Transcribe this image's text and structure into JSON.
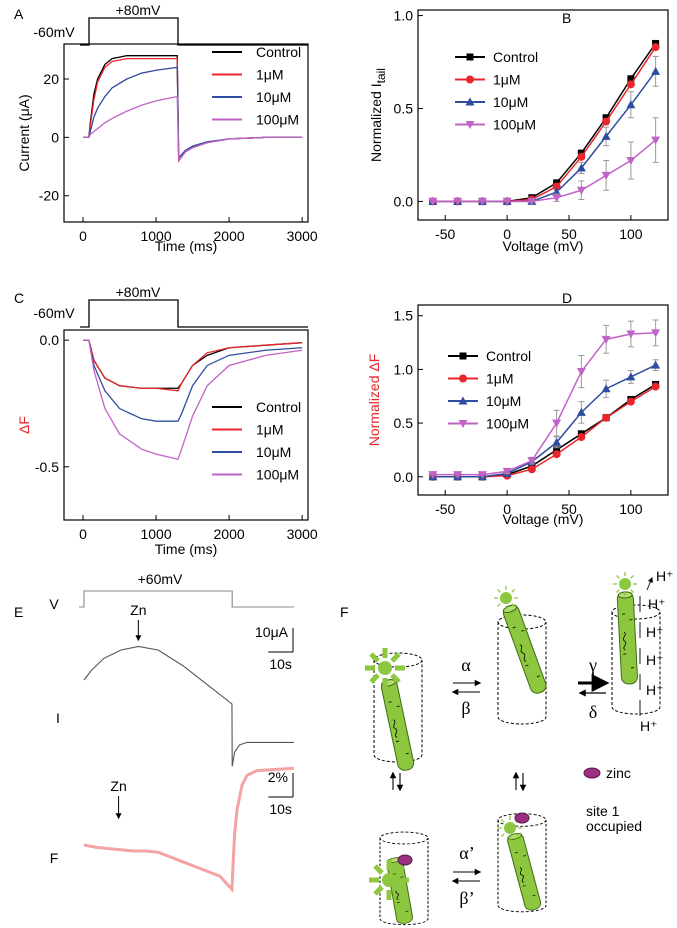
{
  "chart_data": [
    {
      "type": "line",
      "panel": "A",
      "protocol": [
        "-60mV",
        "+80mV"
      ],
      "xlabel": "Time (ms)",
      "ylabel": "Current (μA)",
      "x": [
        0,
        80,
        100,
        150,
        200,
        300,
        400,
        600,
        800,
        1000,
        1290,
        1310,
        1400,
        1500,
        1700,
        2000,
        2500,
        3000
      ],
      "series": [
        {
          "name": "Control",
          "color": "#000000",
          "values": [
            0,
            0,
            5,
            15,
            20,
            25,
            27,
            28,
            28,
            28,
            28,
            -8,
            -5,
            -3.5,
            -1.8,
            -0.5,
            0,
            0
          ]
        },
        {
          "name": "1μM",
          "color": "#e8262b",
          "values": [
            0,
            0,
            4,
            13,
            19,
            24,
            26,
            27,
            27,
            27,
            27,
            -8,
            -5,
            -3.5,
            -1.8,
            -0.5,
            0,
            0
          ]
        },
        {
          "name": "10μM",
          "color": "#2f4da0",
          "values": [
            0,
            0,
            2,
            7,
            10,
            14,
            17,
            20,
            22,
            23,
            24,
            -7,
            -4.5,
            -3,
            -1.5,
            -0.5,
            0,
            0
          ]
        },
        {
          "name": "100μM",
          "color": "#c062c6",
          "values": [
            0,
            0,
            1,
            2,
            3,
            5,
            6.5,
            9,
            11,
            12.5,
            14,
            -8,
            -5,
            -3.5,
            -1.8,
            -0.5,
            0,
            0
          ]
        }
      ],
      "xlim": [
        -260,
        3080
      ],
      "xticks": [
        0,
        1000,
        2000,
        3000
      ],
      "ylim": [
        -29,
        32
      ],
      "yticks": [
        -20,
        0,
        20
      ],
      "legend": "upper right"
    },
    {
      "type": "line",
      "panel": "B",
      "xlabel": "Voltage (mV)",
      "ylabel": "Normalized I",
      "ylabel_sub": "tail",
      "x": [
        -60,
        -40,
        -20,
        0,
        20,
        40,
        60,
        80,
        100,
        120
      ],
      "series": [
        {
          "name": "Control",
          "color": "#000000",
          "marker": "square",
          "values": [
            0,
            0,
            0,
            0,
            0.02,
            0.1,
            0.26,
            0.45,
            0.66,
            0.85
          ]
        },
        {
          "name": "1μM",
          "color": "#e8262b",
          "marker": "circle",
          "values": [
            0,
            0,
            0,
            0,
            0.01,
            0.08,
            0.24,
            0.43,
            0.63,
            0.83
          ]
        },
        {
          "name": "10μM",
          "color": "#2f4da0",
          "marker": "triangle",
          "values": [
            0,
            0,
            0,
            0,
            0,
            0.05,
            0.18,
            0.35,
            0.52,
            0.7
          ],
          "errors": [
            0,
            0,
            0,
            0,
            0,
            0.01,
            0.03,
            0.05,
            0.07,
            0.08
          ]
        },
        {
          "name": "100μM",
          "color": "#c062c6",
          "marker": "triangle-down",
          "values": [
            0,
            0,
            0,
            0,
            0,
            0.02,
            0.06,
            0.14,
            0.22,
            0.33
          ],
          "errors": [
            0,
            0,
            0,
            0,
            0,
            0.02,
            0.05,
            0.08,
            0.1,
            0.12
          ]
        }
      ],
      "xlim": [
        -72,
        130
      ],
      "xticks": [
        -50,
        0,
        50,
        100
      ],
      "ylim": [
        -0.1,
        1.03
      ],
      "yticks": [
        {
          "value": 0,
          "label": "0.0"
        },
        0.5,
        {
          "value": 1,
          "label": "1.0"
        }
      ],
      "legend": "upper left"
    },
    {
      "type": "line",
      "panel": "C",
      "protocol": [
        "-60mV",
        "+80mV"
      ],
      "xlabel": "Time (ms)",
      "ylabel": "ΔF",
      "ylabel_color": "#e8262b",
      "x": [
        0,
        80,
        150,
        300,
        500,
        800,
        1000,
        1300,
        1350,
        1500,
        1700,
        2000,
        2500,
        3000
      ],
      "series": [
        {
          "name": "Control",
          "color": "#000000",
          "values": [
            0,
            0,
            -0.08,
            -0.15,
            -0.18,
            -0.19,
            -0.19,
            -0.19,
            -0.17,
            -0.1,
            -0.06,
            -0.03,
            -0.02,
            -0.01
          ]
        },
        {
          "name": "1μM",
          "color": "#e8262b",
          "values": [
            0,
            0,
            -0.08,
            -0.15,
            -0.18,
            -0.19,
            -0.19,
            -0.2,
            -0.17,
            -0.1,
            -0.05,
            -0.03,
            -0.02,
            -0.01
          ]
        },
        {
          "name": "10μM",
          "color": "#2f4da0",
          "values": [
            0,
            0,
            -0.1,
            -0.2,
            -0.27,
            -0.31,
            -0.32,
            -0.32,
            -0.29,
            -0.18,
            -0.1,
            -0.06,
            -0.04,
            -0.03
          ]
        },
        {
          "name": "100μM",
          "color": "#c062c6",
          "values": [
            0,
            0,
            -0.12,
            -0.27,
            -0.37,
            -0.43,
            -0.45,
            -0.47,
            -0.43,
            -0.3,
            -0.18,
            -0.1,
            -0.06,
            -0.04
          ]
        }
      ],
      "xlim": [
        -260,
        3080
      ],
      "xticks": [
        0,
        1000,
        2000,
        3000
      ],
      "ylim": [
        -0.71,
        0.04
      ],
      "yticks": [
        -0.5,
        {
          "value": 0,
          "label": "0.0"
        }
      ],
      "legend": "lower right"
    },
    {
      "type": "line",
      "panel": "D",
      "xlabel": "Voltage (mV)",
      "ylabel": "Normalized ΔF",
      "ylabel_color": "#e8262b",
      "x": [
        -60,
        -40,
        -20,
        0,
        20,
        40,
        60,
        80,
        100,
        120
      ],
      "series": [
        {
          "name": "Control",
          "color": "#000000",
          "marker": "square",
          "values": [
            0,
            0,
            0,
            0.02,
            0.1,
            0.25,
            0.4,
            0.55,
            0.72,
            0.86
          ]
        },
        {
          "name": "1μM",
          "color": "#e8262b",
          "marker": "circle",
          "values": [
            0,
            0,
            0,
            0.01,
            0.07,
            0.21,
            0.37,
            0.55,
            0.7,
            0.84
          ]
        },
        {
          "name": "10μM",
          "color": "#2f4da0",
          "marker": "triangle",
          "values": [
            0,
            0,
            0,
            0.03,
            0.14,
            0.32,
            0.6,
            0.82,
            0.93,
            1.04
          ],
          "errors": [
            0,
            0,
            0,
            0.01,
            0.02,
            0.05,
            0.1,
            0.08,
            0.06,
            0.05
          ]
        },
        {
          "name": "100μM",
          "color": "#c062c6",
          "marker": "triangle-down",
          "values": [
            0.02,
            0.02,
            0.02,
            0.05,
            0.15,
            0.5,
            0.98,
            1.28,
            1.33,
            1.34
          ],
          "errors": [
            0,
            0,
            0,
            0.02,
            0.03,
            0.12,
            0.15,
            0.13,
            0.12,
            0.12
          ]
        }
      ],
      "xlim": [
        -72,
        130
      ],
      "xticks": [
        -50,
        0,
        50,
        100
      ],
      "ylim": [
        -0.17,
        1.6
      ],
      "yticks": [
        {
          "value": 0,
          "label": "0.0"
        },
        0.5,
        {
          "value": 1,
          "label": "1.0"
        },
        1.5
      ],
      "legend": "center left"
    },
    {
      "type": "trace",
      "panel": "E",
      "step_label": "+60mV",
      "traces": [
        {
          "name": "V",
          "color": "#888888",
          "name_color": "#000000",
          "x": [
            -2,
            0,
            0,
            60,
            60,
            85
          ],
          "values": [
            -60,
            -60,
            60,
            60,
            -60,
            -60
          ]
        },
        {
          "name": "I",
          "color": "#555555",
          "name_color": "#000000",
          "x": [
            0,
            3,
            8,
            15,
            22,
            30,
            40,
            50,
            59.9,
            60,
            61,
            63,
            66,
            85
          ],
          "values": [
            0,
            4,
            9,
            12.5,
            14,
            12.5,
            6,
            -2,
            -10,
            -36,
            -30,
            -27,
            -26,
            -26
          ],
          "annotation": {
            "text": "Zn",
            "x": 22
          },
          "scale": {
            "y": {
              "value": 10,
              "label": "10μA"
            },
            "x": {
              "value": 10,
              "label": "10s"
            }
          }
        },
        {
          "name": "F",
          "color": "#f4a3a3",
          "name_color": "#e8262b",
          "x": [
            0,
            5,
            10,
            15,
            20,
            25,
            30,
            35,
            40,
            45,
            50,
            55,
            59.9,
            60.5,
            61,
            62,
            64,
            66,
            70,
            85
          ],
          "values": [
            0,
            -0.2,
            -0.3,
            -0.4,
            -0.5,
            -0.5,
            -0.6,
            -1,
            -1.4,
            -1.8,
            -2.2,
            -2.6,
            -3.7,
            -1,
            1,
            3,
            5,
            5.8,
            6.2,
            6.4
          ],
          "annotation": {
            "text": "Zn",
            "x": 14
          },
          "scale": {
            "y": {
              "value": 2,
              "label": "2%"
            },
            "x": {
              "value": 10,
              "label": "10s"
            }
          }
        }
      ]
    }
  ],
  "diagram": {
    "panel": "F",
    "rates": [
      "α",
      "β",
      "γ",
      "δ",
      "α’",
      "β’"
    ],
    "zinc": "zinc",
    "site": [
      "site 1",
      "occupied"
    ],
    "proton": "H⁺"
  }
}
